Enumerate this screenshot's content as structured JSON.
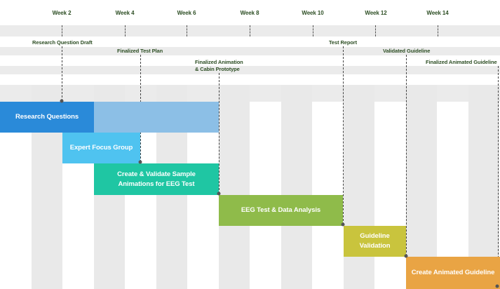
{
  "colors": {
    "band": "#ebebeb",
    "column": "#e9e9e9",
    "label_text": "#2e4f25",
    "research": "#2a8ad9",
    "research_extension": "#8cbfe6",
    "expert_focus": "#4fc3f0",
    "create_validate": "#1fc6a3",
    "eeg_test": "#8fbb4a",
    "guideline_validation": "#c9c43d",
    "animated_guideline": "#e9a444"
  },
  "weeks": [
    "Week 2",
    "Week 4",
    "Week 6",
    "Week 8",
    "Week 10",
    "Week 12",
    "Week 14"
  ],
  "milestones": {
    "research_question_draft": "Research Question Draft",
    "finalized_test_plan": "Finalized Test Plan",
    "finalized_animation_line1": "Finalized Animation",
    "finalized_animation_line2": "& Cabin Prototype",
    "test_report": "Test Report",
    "validated_guideline": "Validated Guideline",
    "finalized_animated_guideline": "Finalized Animated Guideline"
  },
  "tasks": {
    "research_questions": "Research Questions",
    "expert_focus_group": "Expert Focus Group",
    "create_validate_line1": "Create & Validate Sample",
    "create_validate_line2": "Animations for EEG Test",
    "eeg_test": "EEG Test & Data Analysis",
    "guideline_validation": "Guideline Validation",
    "create_animated_guideline": "Create Animated Guideline"
  }
}
